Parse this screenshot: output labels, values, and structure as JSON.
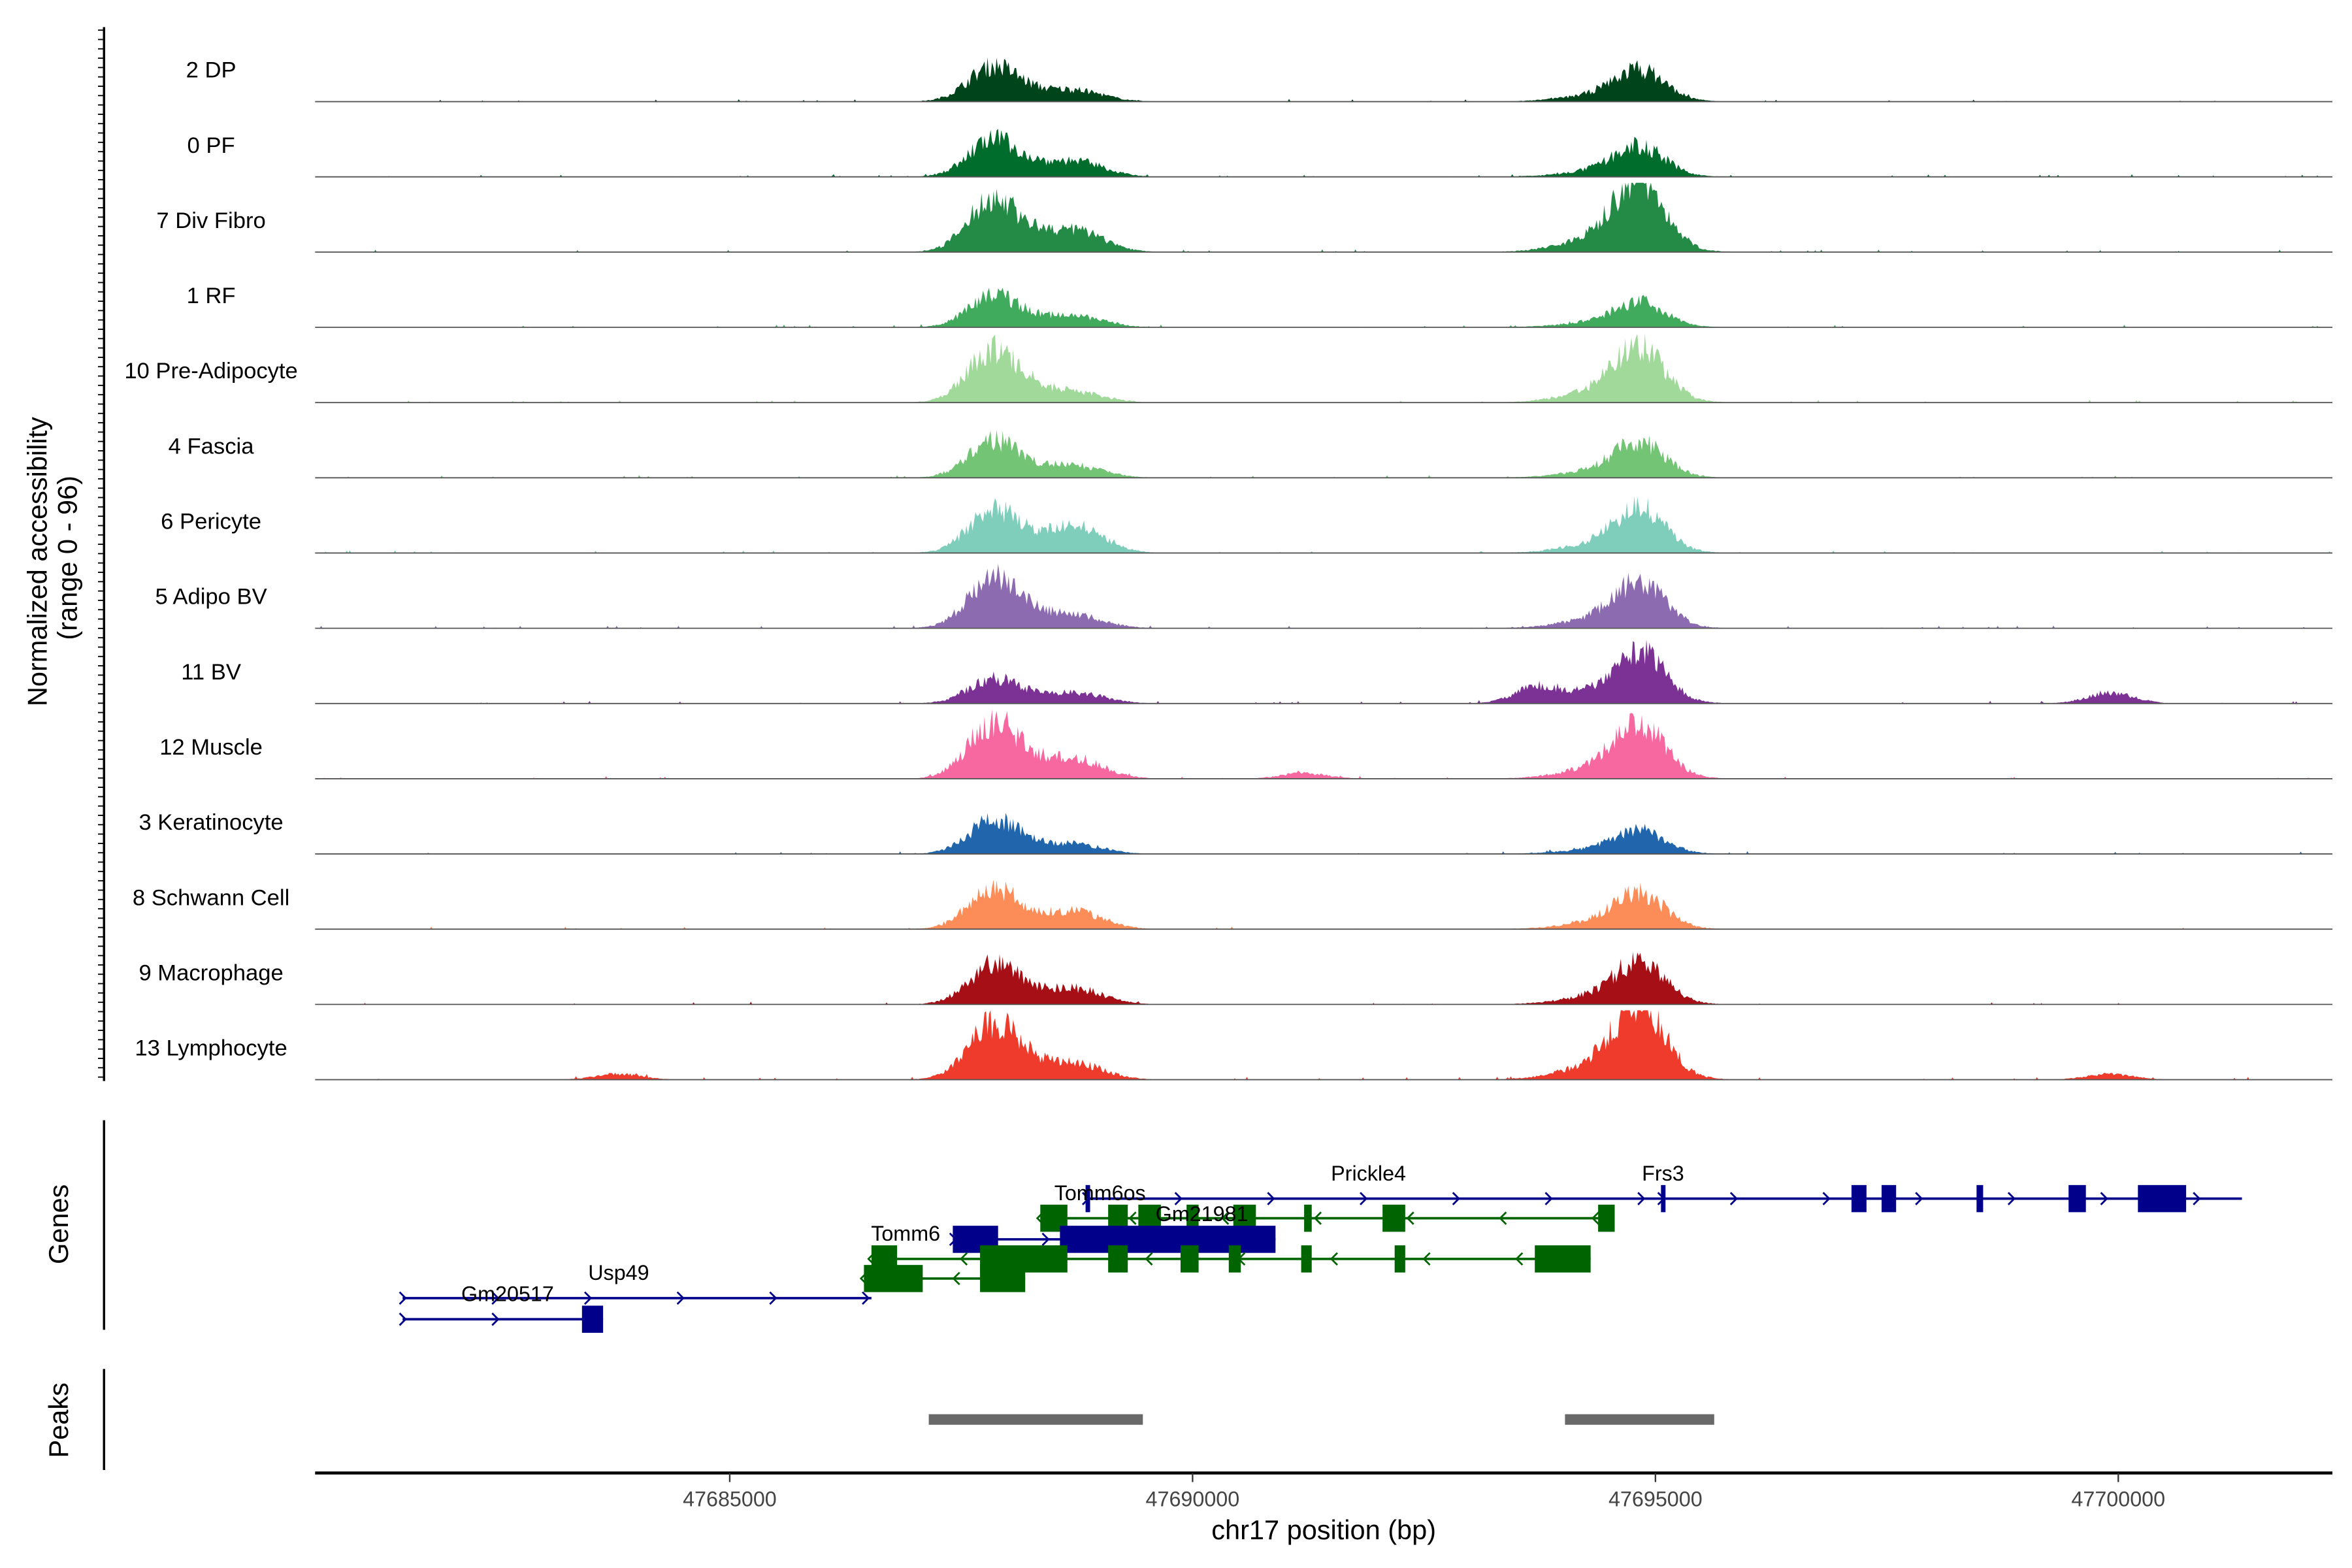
{
  "chart_data": {
    "type": "area",
    "title": "",
    "ylabel": "Normalized accessibility\n(range 0 - 96)",
    "ylabel_lines": [
      "Normalized accessibility",
      "(range 0 - 96)"
    ],
    "xlabel": "chr17 position (bp)",
    "xlim": [
      47680521,
      47702313
    ],
    "ylim": [
      0,
      96
    ],
    "xticks": [
      47685000,
      47690000,
      47695000,
      47700000
    ],
    "xtick_labels": [
      "47685000",
      "47690000",
      "47695000",
      "47700000"
    ],
    "peak_centers": {
      "A": 47687834,
      "B": 47688762,
      "C": 47694837
    },
    "tracks": [
      {
        "name": "2 DP",
        "color": "#00441b",
        "heights": {
          "A": 0.4,
          "B": 0.14,
          "C": 0.38
        },
        "extras": []
      },
      {
        "name": "0 PF",
        "color": "#006d2c",
        "heights": {
          "A": 0.42,
          "B": 0.2,
          "C": 0.36
        },
        "extras": []
      },
      {
        "name": "7 Div Fibro",
        "color": "#238b45",
        "heights": {
          "A": 0.6,
          "B": 0.28,
          "C": 0.85
        },
        "extras": []
      },
      {
        "name": "1 RF",
        "color": "#41ab5d",
        "heights": {
          "A": 0.36,
          "B": 0.14,
          "C": 0.3
        },
        "extras": []
      },
      {
        "name": "10 Pre-Adipocyte",
        "color": "#a1d99b",
        "heights": {
          "A": 0.6,
          "B": 0.12,
          "C": 0.66
        },
        "extras": []
      },
      {
        "name": "4 Fascia",
        "color": "#74c476",
        "heights": {
          "A": 0.42,
          "B": 0.15,
          "C": 0.42
        },
        "extras": []
      },
      {
        "name": "6 Pericyte",
        "color": "#7fcdbb",
        "heights": {
          "A": 0.48,
          "B": 0.35,
          "C": 0.52
        },
        "extras": []
      },
      {
        "name": "5 Adipo BV",
        "color": "#8c6bb1",
        "heights": {
          "A": 0.58,
          "B": 0.16,
          "C": 0.55
        },
        "extras": []
      },
      {
        "name": "11 BV",
        "color": "#7b3294",
        "heights": {
          "A": 0.28,
          "B": 0.14,
          "C": 0.62
        },
        "extras": [
          [
            47693730,
            0.22
          ],
          [
            47699919,
            0.15
          ]
        ]
      },
      {
        "name": "12 Muscle",
        "color": "#f768a1",
        "heights": {
          "A": 0.65,
          "B": 0.25,
          "C": 0.65
        },
        "extras": [
          [
            47691205,
            0.08
          ]
        ]
      },
      {
        "name": "3 Keratinocyte",
        "color": "#2166ac",
        "heights": {
          "A": 0.38,
          "B": 0.12,
          "C": 0.28
        },
        "extras": []
      },
      {
        "name": "8 Schwann Cell",
        "color": "#fc8d59",
        "heights": {
          "A": 0.45,
          "B": 0.22,
          "C": 0.42
        },
        "extras": []
      },
      {
        "name": "9 Macrophage",
        "color": "#a50f15",
        "heights": {
          "A": 0.45,
          "B": 0.2,
          "C": 0.5
        },
        "extras": []
      },
      {
        "name": "13 Lymphocyte",
        "color": "#ef3b2c",
        "heights": {
          "A": 0.65,
          "B": 0.2,
          "C": 0.9
        },
        "extras": [
          [
            47683795,
            0.08
          ],
          [
            47699919,
            0.08
          ]
        ]
      }
    ],
    "genes_panel_label": "Genes",
    "genes": [
      {
        "name": "Prickle4",
        "strand": "+",
        "color": "#00008b",
        "lane": 0,
        "start": 47688844,
        "end": 47701336,
        "label_at": 47691900,
        "exons": [
          [
            47688844,
            47688880
          ],
          [
            47697118,
            47697280
          ],
          [
            47697443,
            47697600
          ],
          [
            47698469,
            47698540
          ],
          [
            47699463,
            47699650
          ],
          [
            47700212,
            47700733
          ]
        ]
      },
      {
        "name": "Frs3",
        "strand": "+",
        "color": "#00008b",
        "lane": 0,
        "start": 47695060,
        "end": 47695100,
        "label_at": 47695082,
        "exons": [
          [
            47695060,
            47695100
          ]
        ]
      },
      {
        "name": "Tomm6os",
        "strand": "-",
        "color": "#006400",
        "lane": 1,
        "start": 47688355,
        "end": 47694560,
        "label_at": 47689000,
        "exons": [
          [
            47688355,
            47688648
          ],
          [
            47689088,
            47689300
          ],
          [
            47689414,
            47689658
          ],
          [
            47689935,
            47690065
          ],
          [
            47690440,
            47690684
          ],
          [
            47691205,
            47691287
          ],
          [
            47692052,
            47692297
          ],
          [
            47694381,
            47694560
          ]
        ]
      },
      {
        "name": "Gm21981",
        "strand": "+",
        "color": "#00008b",
        "lane": 2,
        "start": 47687410,
        "end": 47690896,
        "label_at": 47690100,
        "exons": [
          [
            47687410,
            47687899
          ],
          [
            47688567,
            47690896
          ]
        ]
      },
      {
        "name": "Tomm6",
        "strand": "-",
        "color": "#006400",
        "lane": 3,
        "start": 47686531,
        "end": 47694300,
        "label_at": 47686900,
        "exons": [
          [
            47686531,
            47686808
          ],
          [
            47687704,
            47688648
          ],
          [
            47689088,
            47689300
          ],
          [
            47689870,
            47690065
          ],
          [
            47690391,
            47690521
          ],
          [
            47691173,
            47691287
          ],
          [
            47692183,
            47692297
          ],
          [
            47693697,
            47694300
          ]
        ]
      },
      {
        "name": "",
        "strand": "-",
        "color": "#006400",
        "lane": 4,
        "start": 47686450,
        "end": 47688192,
        "exons": [
          [
            47686450,
            47687085
          ],
          [
            47687704,
            47688192
          ]
        ]
      },
      {
        "name": "Usp49",
        "strand": "+",
        "color": "#00008b",
        "lane": 5,
        "start": 47681466,
        "end": 47686531,
        "label_at": 47683800,
        "exons": []
      },
      {
        "name": "Gm20517",
        "strand": "+",
        "color": "#00008b",
        "lane": 6,
        "start": 47681466,
        "end": 47683632,
        "label_at": 47682600,
        "exons": [
          [
            47683404,
            47683632
          ]
        ]
      }
    ],
    "peaks_panel_label": "Peaks",
    "peaks": [
      [
        47687150,
        47689463
      ],
      [
        47694023,
        47695635
      ]
    ],
    "peak_color": "#696969"
  }
}
